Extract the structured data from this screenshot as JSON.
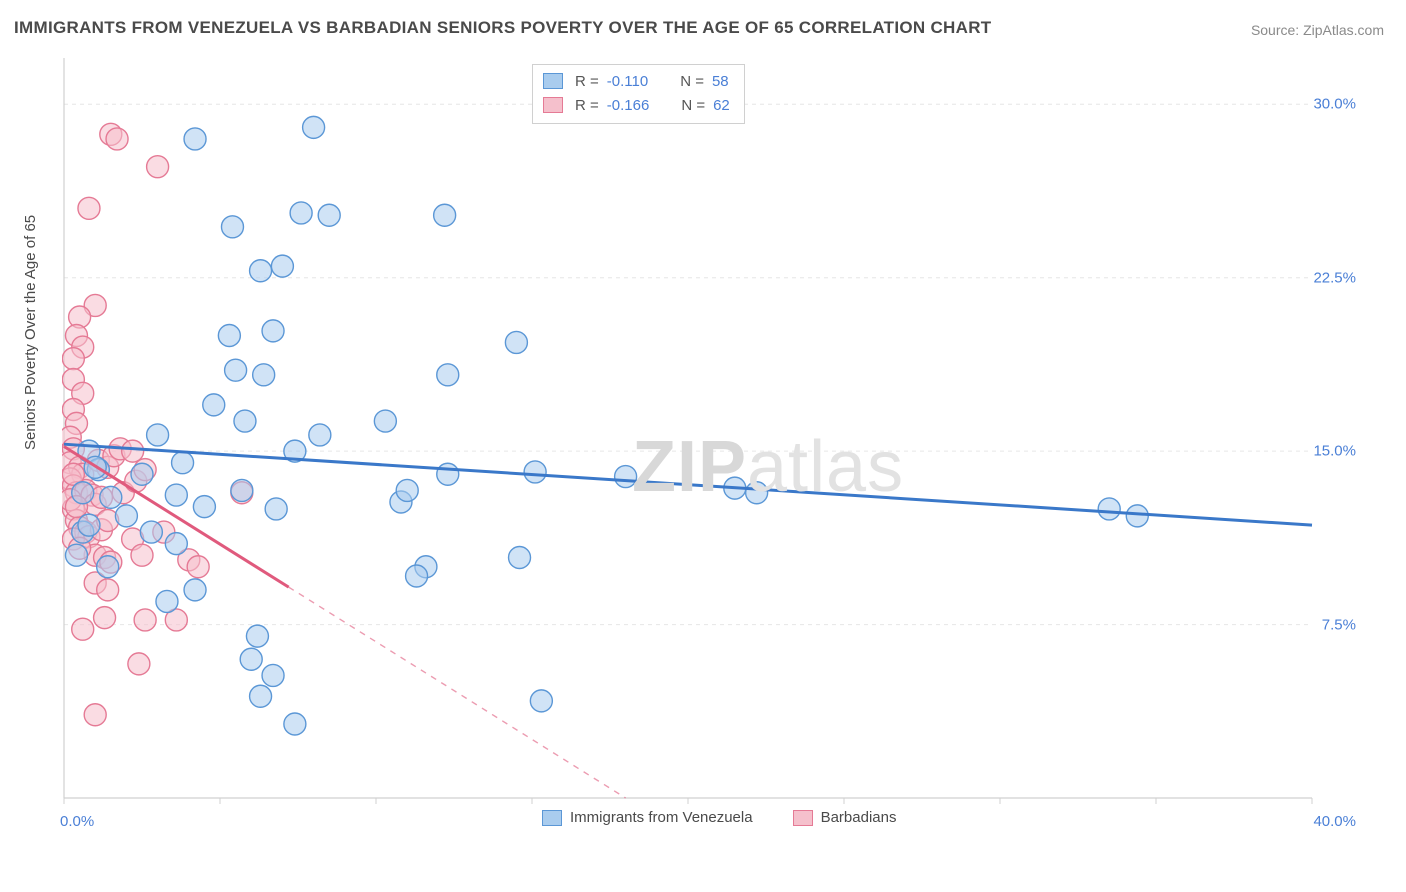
{
  "title": "IMMIGRANTS FROM VENEZUELA VS BARBADIAN SENIORS POVERTY OVER THE AGE OF 65 CORRELATION CHART",
  "source": "Source: ZipAtlas.com",
  "watermark_bold": "ZIP",
  "watermark_thin": "atlas",
  "chart": {
    "type": "scatter",
    "ylabel": "Seniors Poverty Over the Age of 65",
    "xlim": [
      0,
      40
    ],
    "ylim": [
      0,
      32
    ],
    "xticks": [
      0,
      5,
      10,
      15,
      20,
      25,
      30,
      35,
      40
    ],
    "xticks_labeled": {
      "0": "0.0%",
      "40": "40.0%"
    },
    "yticks": [
      7.5,
      15.0,
      22.5,
      30.0
    ],
    "ytick_labels": [
      "7.5%",
      "15.0%",
      "22.5%",
      "30.0%"
    ],
    "grid_color": "#e6e6e6",
    "axis_color": "#d0d0d0",
    "background_color": "#ffffff",
    "series": [
      {
        "name": "Immigrants from Venezuela",
        "color_fill": "#a9ccee",
        "color_stroke": "#5b97d6",
        "fill_opacity": 0.55,
        "marker_radius": 11,
        "r_label": "R = ",
        "r_value": "-0.110",
        "n_label": "N = ",
        "n_value": "58",
        "trend": {
          "x1": 0,
          "y1": 15.3,
          "x2": 40,
          "y2": 11.8,
          "solid_frac": 1.0,
          "stroke": "#3a78c9",
          "width": 3
        },
        "points": [
          [
            4.2,
            28.5
          ],
          [
            6.3,
            22.8
          ],
          [
            6.7,
            20.2
          ],
          [
            5.3,
            20.0
          ],
          [
            7.0,
            23.0
          ],
          [
            7.6,
            25.3
          ],
          [
            8.5,
            25.2
          ],
          [
            12.2,
            25.2
          ],
          [
            5.5,
            18.5
          ],
          [
            6.4,
            18.3
          ],
          [
            4.8,
            17.0
          ],
          [
            5.8,
            16.3
          ],
          [
            3.0,
            15.7
          ],
          [
            0.8,
            15.0
          ],
          [
            1.1,
            14.2
          ],
          [
            1.5,
            13.0
          ],
          [
            2.5,
            14.0
          ],
          [
            2.0,
            12.2
          ],
          [
            2.8,
            11.5
          ],
          [
            3.6,
            11.0
          ],
          [
            4.5,
            12.6
          ],
          [
            5.7,
            13.3
          ],
          [
            6.8,
            12.5
          ],
          [
            7.4,
            15.0
          ],
          [
            8.2,
            15.7
          ],
          [
            10.3,
            16.3
          ],
          [
            10.8,
            12.8
          ],
          [
            11.0,
            13.3
          ],
          [
            11.6,
            10.0
          ],
          [
            11.3,
            9.6
          ],
          [
            12.3,
            14.0
          ],
          [
            12.3,
            18.3
          ],
          [
            14.5,
            19.7
          ],
          [
            15.1,
            14.1
          ],
          [
            15.3,
            4.2
          ],
          [
            14.6,
            10.4
          ],
          [
            6.7,
            5.3
          ],
          [
            7.4,
            3.2
          ],
          [
            6.3,
            4.4
          ],
          [
            6.2,
            7.0
          ],
          [
            6.0,
            6.0
          ],
          [
            3.3,
            8.5
          ],
          [
            4.2,
            9.0
          ],
          [
            1.4,
            10.0
          ],
          [
            0.6,
            11.5
          ],
          [
            0.6,
            13.2
          ],
          [
            1.0,
            14.3
          ],
          [
            0.8,
            11.8
          ],
          [
            0.4,
            10.5
          ],
          [
            3.8,
            14.5
          ],
          [
            3.6,
            13.1
          ],
          [
            18.0,
            13.9
          ],
          [
            21.5,
            13.4
          ],
          [
            22.2,
            13.2
          ],
          [
            33.5,
            12.5
          ],
          [
            34.4,
            12.2
          ],
          [
            8.0,
            29.0
          ],
          [
            5.4,
            24.7
          ]
        ]
      },
      {
        "name": "Barbadians",
        "color_fill": "#f5c0cc",
        "color_stroke": "#e57a95",
        "fill_opacity": 0.55,
        "marker_radius": 11,
        "r_label": "R = ",
        "r_value": "-0.166",
        "n_label": "N = ",
        "n_value": "62",
        "trend": {
          "x1": 0,
          "y1": 15.2,
          "x2": 18.0,
          "y2": 0.0,
          "solid_frac": 0.4,
          "stroke": "#e05a7d",
          "width": 3
        },
        "points": [
          [
            1.5,
            28.7
          ],
          [
            1.7,
            28.5
          ],
          [
            3.0,
            27.3
          ],
          [
            0.8,
            25.5
          ],
          [
            1.0,
            21.3
          ],
          [
            0.5,
            20.8
          ],
          [
            0.4,
            20.0
          ],
          [
            0.6,
            19.5
          ],
          [
            0.3,
            19.0
          ],
          [
            0.3,
            18.1
          ],
          [
            0.6,
            17.5
          ],
          [
            0.3,
            16.8
          ],
          [
            0.4,
            16.2
          ],
          [
            0.2,
            15.6
          ],
          [
            0.3,
            15.1
          ],
          [
            0.2,
            14.5
          ],
          [
            0.5,
            14.3
          ],
          [
            0.6,
            14.0
          ],
          [
            0.2,
            13.8
          ],
          [
            0.3,
            13.5
          ],
          [
            0.4,
            13.2
          ],
          [
            0.7,
            13.3
          ],
          [
            0.9,
            13.1
          ],
          [
            1.0,
            12.7
          ],
          [
            1.2,
            13.0
          ],
          [
            0.3,
            12.5
          ],
          [
            0.4,
            12.0
          ],
          [
            0.5,
            11.7
          ],
          [
            0.7,
            11.5
          ],
          [
            0.8,
            11.3
          ],
          [
            1.2,
            11.6
          ],
          [
            1.4,
            12.0
          ],
          [
            1.1,
            14.6
          ],
          [
            1.4,
            14.3
          ],
          [
            1.6,
            14.8
          ],
          [
            1.8,
            15.1
          ],
          [
            2.2,
            15.0
          ],
          [
            1.9,
            13.2
          ],
          [
            2.3,
            13.7
          ],
          [
            2.6,
            14.2
          ],
          [
            2.2,
            11.2
          ],
          [
            1.0,
            10.5
          ],
          [
            1.3,
            10.4
          ],
          [
            1.5,
            10.2
          ],
          [
            2.5,
            10.5
          ],
          [
            3.2,
            11.5
          ],
          [
            4.0,
            10.3
          ],
          [
            4.3,
            10.0
          ],
          [
            5.7,
            13.2
          ],
          [
            1.0,
            9.3
          ],
          [
            1.4,
            9.0
          ],
          [
            2.6,
            7.7
          ],
          [
            3.6,
            7.7
          ],
          [
            2.4,
            5.8
          ],
          [
            0.6,
            7.3
          ],
          [
            1.3,
            7.8
          ],
          [
            1.0,
            3.6
          ],
          [
            0.3,
            14.0
          ],
          [
            0.2,
            12.9
          ],
          [
            0.4,
            12.6
          ],
          [
            0.3,
            11.2
          ],
          [
            0.5,
            10.8
          ]
        ]
      }
    ],
    "legend_bottom": [
      {
        "label": "Immigrants from Venezuela",
        "fill": "#a9ccee",
        "stroke": "#5b97d6"
      },
      {
        "label": "Barbadians",
        "fill": "#f5c0cc",
        "stroke": "#e57a95"
      }
    ]
  }
}
